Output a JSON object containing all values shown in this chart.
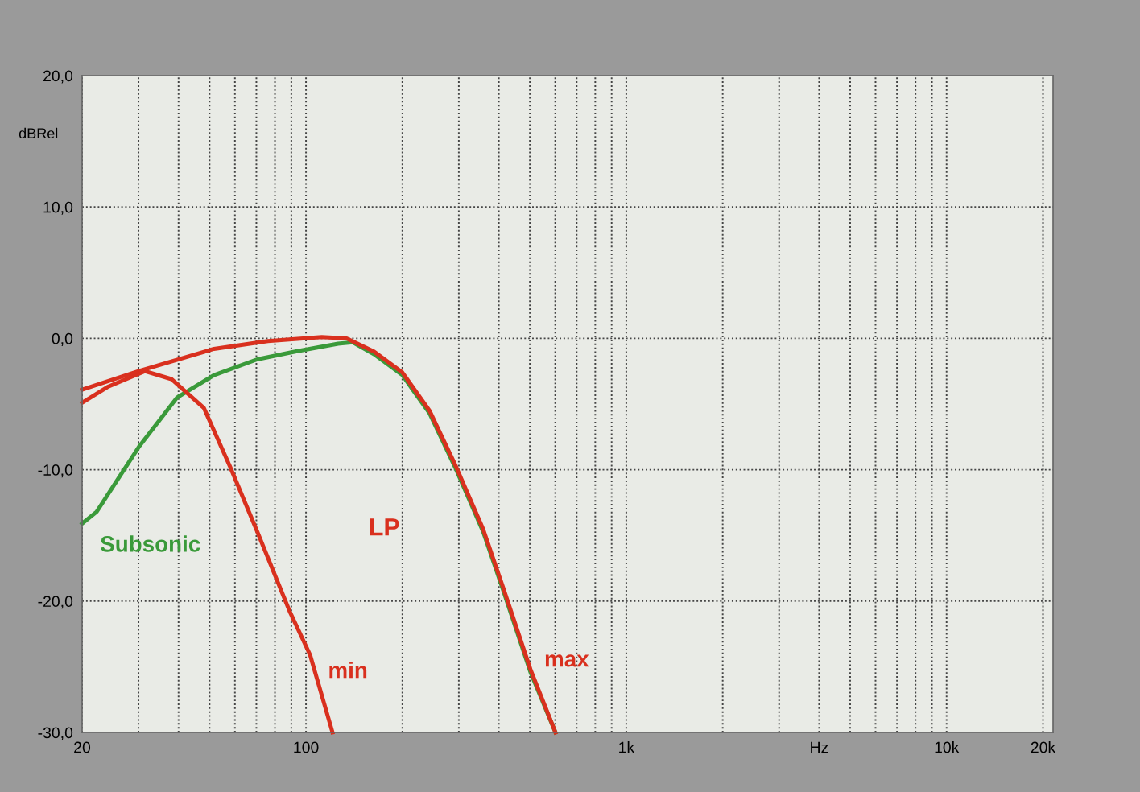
{
  "chart_data": {
    "type": "line",
    "ylabel": "dBRel",
    "log": "x",
    "grid": true,
    "line_style": "solid",
    "marker": "none",
    "xlim": [
      20,
      21500
    ],
    "ylim": [
      -30,
      20
    ],
    "yticks": [
      {
        "value": 20,
        "label": "20,0"
      },
      {
        "value": 10,
        "label": "10,0"
      },
      {
        "value": 0,
        "label": "0,0"
      },
      {
        "value": -10,
        "label": "-10,0"
      },
      {
        "value": -20,
        "label": "-20,0"
      },
      {
        "value": -30,
        "label": "-30,0"
      }
    ],
    "xticks": [
      20,
      {
        "value": 30,
        "label": null
      },
      {
        "value": 40,
        "label": null
      },
      {
        "value": 50,
        "label": null
      },
      {
        "value": 60,
        "label": null
      },
      {
        "value": 70,
        "label": null
      },
      {
        "value": 80,
        "label": null
      },
      {
        "value": 90,
        "label": null
      },
      100,
      {
        "value": 200,
        "label": null
      },
      {
        "value": 300,
        "label": null
      },
      {
        "value": 400,
        "label": null
      },
      {
        "value": 500,
        "label": null
      },
      {
        "value": 600,
        "label": null
      },
      {
        "value": 700,
        "label": null
      },
      {
        "value": 800,
        "label": null
      },
      {
        "value": 900,
        "label": null
      },
      {
        "value": 1000,
        "label": "1k"
      },
      {
        "value": 2000,
        "label": null
      },
      {
        "value": 3000,
        "label": null
      },
      {
        "value": 4000,
        "label": "Hz"
      },
      {
        "value": 5000,
        "label": null
      },
      {
        "value": 6000,
        "label": null
      },
      {
        "value": 7000,
        "label": null
      },
      {
        "value": 8000,
        "label": null
      },
      {
        "value": 9000,
        "label": null
      },
      {
        "value": 10000,
        "label": "10k"
      },
      {
        "value": 20000,
        "label": "20k"
      }
    ],
    "annotations": [
      "LP"
    ],
    "series": [
      {
        "name": "Subsonic",
        "color": "#3a9a3a",
        "x": [
          20,
          22.2,
          30.2,
          39.6,
          51.6,
          70.4,
          92.6,
          126,
          140,
          163,
          200,
          243,
          292,
          357,
          413,
          502,
          601
        ],
        "values": [
          -14.1,
          -13.2,
          -8.2,
          -4.5,
          -2.8,
          -1.6,
          -1.0,
          -0.4,
          -0.3,
          -1.2,
          -2.8,
          -5.7,
          -9.8,
          -14.7,
          -19.2,
          -25.4,
          -30
        ]
      },
      {
        "name": "min",
        "color": "#d9301e",
        "x": [
          20,
          24,
          31.4,
          38,
          48,
          58,
          70.4,
          89,
          103,
          121
        ],
        "values": [
          -4.9,
          -3.7,
          -2.5,
          -3.1,
          -5.3,
          -9.8,
          -14.7,
          -20.8,
          -24.1,
          -30
        ]
      },
      {
        "name": "max",
        "color": "#d9301e",
        "x": [
          20,
          30,
          51.6,
          76,
          112,
          134,
          163,
          200,
          243,
          292,
          357,
          413,
          502,
          601
        ],
        "values": [
          -3.9,
          -2.5,
          -0.8,
          -0.2,
          0.1,
          0,
          -1.0,
          -2.6,
          -5.5,
          -9.6,
          -14.5,
          -19.0,
          -25.2,
          -30
        ]
      }
    ]
  }
}
